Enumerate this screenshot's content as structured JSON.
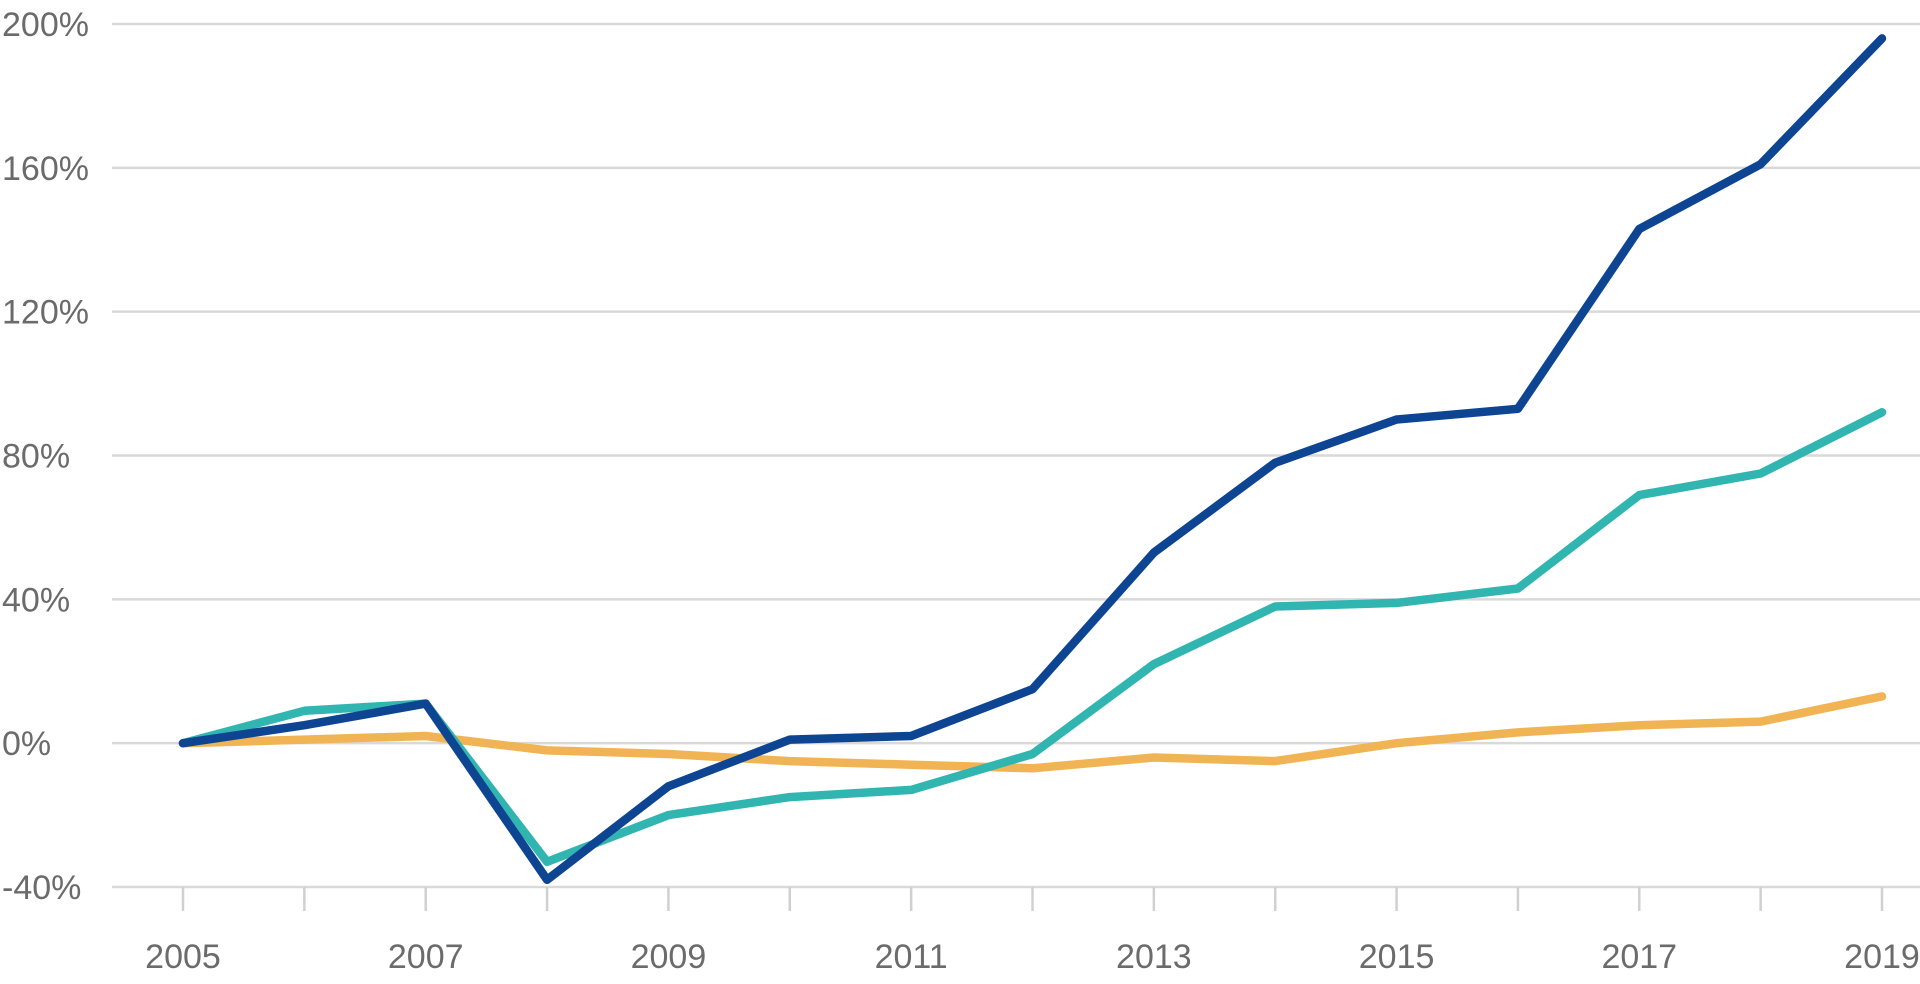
{
  "chart_data": {
    "type": "line",
    "title": "",
    "xlabel": "",
    "ylabel": "",
    "x": [
      2005,
      2006,
      2007,
      2008,
      2009,
      2010,
      2011,
      2012,
      2013,
      2014,
      2015,
      2016,
      2017,
      2018,
      2019
    ],
    "x_tick_labels": [
      "2005",
      "2007",
      "2009",
      "2011",
      "2013",
      "2015",
      "2017",
      "2019"
    ],
    "y_tick_labels": [
      "-40%",
      "0%",
      "40%",
      "80%",
      "120%",
      "160%",
      "200%"
    ],
    "y_ticks": [
      -40,
      0,
      40,
      80,
      120,
      160,
      200
    ],
    "ylim": [
      -40,
      200
    ],
    "xlim": [
      2005,
      2019
    ],
    "grid": "horizontal",
    "series": [
      {
        "color": "#f0b455",
        "values": [
          0,
          1,
          2,
          -2,
          -3,
          -5,
          -6,
          -7,
          -4,
          -5,
          0,
          3,
          5,
          6,
          13
        ]
      },
      {
        "color": "#31b5b0",
        "values": [
          0,
          9,
          11,
          -33,
          -20,
          -15,
          -13,
          -3,
          22,
          38,
          39,
          43,
          69,
          75,
          92
        ]
      },
      {
        "color": "#0e4592",
        "values": [
          0,
          5,
          11,
          -38,
          -12,
          1,
          2,
          15,
          53,
          78,
          90,
          93,
          143,
          161,
          196
        ]
      }
    ]
  }
}
